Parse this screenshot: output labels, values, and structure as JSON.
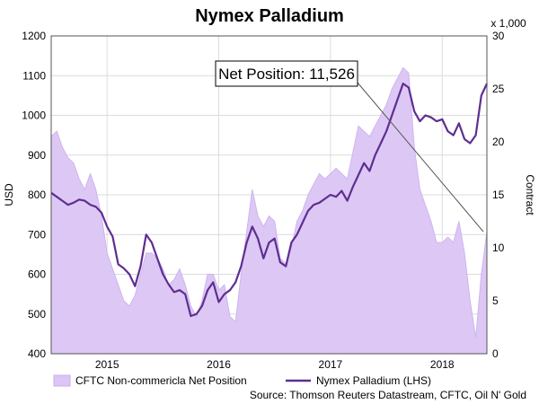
{
  "chart_data": {
    "type": "area+line",
    "title": "Nymex Palladium",
    "ylabel_left": "USD",
    "ylabel_right": "Contract",
    "right_axis_multiplier": "x 1,000",
    "ylim_left": [
      400,
      1200
    ],
    "yticks_left": [
      400,
      500,
      600,
      700,
      800,
      900,
      1000,
      1100,
      1200
    ],
    "ylim_right": [
      0,
      30
    ],
    "yticks_right": [
      0,
      5,
      10,
      15,
      20,
      25,
      30
    ],
    "x_range": [
      2014.5,
      2018.4
    ],
    "x_tick_labels": [
      {
        "x": 2015.0,
        "label": "2015"
      },
      {
        "x": 2016.0,
        "label": "2016"
      },
      {
        "x": 2017.0,
        "label": "2017"
      },
      {
        "x": 2018.0,
        "label": "2018"
      }
    ],
    "grid": true,
    "annotation": "Net Position: 11,526",
    "legend_position": "bottom",
    "source": "Source: Thomson Reuters Datastream, CFTC, Oil N' Gold",
    "series": [
      {
        "name": "CFTC Non-commericla Net Position",
        "axis": "right",
        "kind": "area",
        "color": "#dcc6f5",
        "points": [
          [
            2014.5,
            20.5
          ],
          [
            2014.55,
            21.0
          ],
          [
            2014.6,
            19.5
          ],
          [
            2014.65,
            18.5
          ],
          [
            2014.7,
            18.0
          ],
          [
            2014.75,
            16.5
          ],
          [
            2014.8,
            15.5
          ],
          [
            2014.85,
            17.0
          ],
          [
            2014.9,
            15.5
          ],
          [
            2014.95,
            13.0
          ],
          [
            2015.0,
            9.5
          ],
          [
            2015.05,
            8.0
          ],
          [
            2015.1,
            6.5
          ],
          [
            2015.15,
            5.0
          ],
          [
            2015.2,
            4.5
          ],
          [
            2015.25,
            5.5
          ],
          [
            2015.3,
            7.5
          ],
          [
            2015.35,
            9.5
          ],
          [
            2015.4,
            9.5
          ],
          [
            2015.45,
            9.0
          ],
          [
            2015.5,
            8.0
          ],
          [
            2015.55,
            6.5
          ],
          [
            2015.6,
            7.0
          ],
          [
            2015.65,
            8.0
          ],
          [
            2015.7,
            6.5
          ],
          [
            2015.75,
            4.5
          ],
          [
            2015.8,
            3.5
          ],
          [
            2015.85,
            5.0
          ],
          [
            2015.9,
            7.5
          ],
          [
            2015.95,
            7.5
          ],
          [
            2016.0,
            6.0
          ],
          [
            2016.05,
            6.5
          ],
          [
            2016.1,
            3.5
          ],
          [
            2016.15,
            3.0
          ],
          [
            2016.2,
            7.5
          ],
          [
            2016.25,
            11.5
          ],
          [
            2016.3,
            15.5
          ],
          [
            2016.35,
            13.0
          ],
          [
            2016.4,
            12.0
          ],
          [
            2016.45,
            13.0
          ],
          [
            2016.5,
            12.5
          ],
          [
            2016.55,
            9.0
          ],
          [
            2016.6,
            8.5
          ],
          [
            2016.65,
            10.0
          ],
          [
            2016.7,
            12.5
          ],
          [
            2016.75,
            13.5
          ],
          [
            2016.8,
            15.0
          ],
          [
            2016.85,
            16.0
          ],
          [
            2016.9,
            17.0
          ],
          [
            2016.95,
            16.5
          ],
          [
            2017.0,
            17.0
          ],
          [
            2017.05,
            17.5
          ],
          [
            2017.1,
            17.0
          ],
          [
            2017.15,
            16.5
          ],
          [
            2017.2,
            19.0
          ],
          [
            2017.25,
            21.5
          ],
          [
            2017.3,
            21.0
          ],
          [
            2017.35,
            20.5
          ],
          [
            2017.4,
            21.5
          ],
          [
            2017.45,
            22.5
          ],
          [
            2017.5,
            23.5
          ],
          [
            2017.55,
            25.0
          ],
          [
            2017.6,
            26.0
          ],
          [
            2017.65,
            27.0
          ],
          [
            2017.7,
            26.5
          ],
          [
            2017.75,
            19.5
          ],
          [
            2017.8,
            15.5
          ],
          [
            2017.85,
            14.0
          ],
          [
            2017.9,
            12.5
          ],
          [
            2017.95,
            10.5
          ],
          [
            2018.0,
            10.5
          ],
          [
            2018.05,
            11.0
          ],
          [
            2018.1,
            10.5
          ],
          [
            2018.15,
            12.5
          ],
          [
            2018.2,
            9.5
          ],
          [
            2018.25,
            5.0
          ],
          [
            2018.3,
            1.5
          ],
          [
            2018.35,
            7.5
          ],
          [
            2018.4,
            11.5
          ]
        ]
      },
      {
        "name": "Nymex Palladium (LHS)",
        "axis": "left",
        "kind": "line",
        "color": "#5e2e91",
        "points": [
          [
            2014.5,
            805
          ],
          [
            2014.55,
            795
          ],
          [
            2014.6,
            785
          ],
          [
            2014.65,
            775
          ],
          [
            2014.7,
            780
          ],
          [
            2014.75,
            788
          ],
          [
            2014.8,
            785
          ],
          [
            2014.85,
            775
          ],
          [
            2014.9,
            770
          ],
          [
            2014.95,
            755
          ],
          [
            2015.0,
            720
          ],
          [
            2015.05,
            695
          ],
          [
            2015.1,
            625
          ],
          [
            2015.15,
            615
          ],
          [
            2015.2,
            600
          ],
          [
            2015.25,
            570
          ],
          [
            2015.3,
            620
          ],
          [
            2015.35,
            700
          ],
          [
            2015.4,
            680
          ],
          [
            2015.45,
            640
          ],
          [
            2015.5,
            600
          ],
          [
            2015.55,
            575
          ],
          [
            2015.6,
            555
          ],
          [
            2015.65,
            560
          ],
          [
            2015.7,
            550
          ],
          [
            2015.75,
            495
          ],
          [
            2015.8,
            500
          ],
          [
            2015.85,
            520
          ],
          [
            2015.9,
            560
          ],
          [
            2015.95,
            580
          ],
          [
            2016.0,
            530
          ],
          [
            2016.05,
            550
          ],
          [
            2016.1,
            560
          ],
          [
            2016.15,
            580
          ],
          [
            2016.2,
            620
          ],
          [
            2016.25,
            680
          ],
          [
            2016.3,
            720
          ],
          [
            2016.35,
            690
          ],
          [
            2016.4,
            640
          ],
          [
            2016.45,
            680
          ],
          [
            2016.5,
            690
          ],
          [
            2016.55,
            630
          ],
          [
            2016.6,
            620
          ],
          [
            2016.65,
            680
          ],
          [
            2016.7,
            700
          ],
          [
            2016.75,
            730
          ],
          [
            2016.8,
            760
          ],
          [
            2016.85,
            775
          ],
          [
            2016.9,
            780
          ],
          [
            2016.95,
            790
          ],
          [
            2017.0,
            800
          ],
          [
            2017.05,
            795
          ],
          [
            2017.1,
            810
          ],
          [
            2017.15,
            785
          ],
          [
            2017.2,
            820
          ],
          [
            2017.25,
            850
          ],
          [
            2017.3,
            880
          ],
          [
            2017.35,
            860
          ],
          [
            2017.4,
            900
          ],
          [
            2017.45,
            930
          ],
          [
            2017.5,
            960
          ],
          [
            2017.55,
            1000
          ],
          [
            2017.6,
            1040
          ],
          [
            2017.65,
            1080
          ],
          [
            2017.7,
            1070
          ],
          [
            2017.75,
            1010
          ],
          [
            2017.8,
            985
          ],
          [
            2017.85,
            1000
          ],
          [
            2017.9,
            995
          ],
          [
            2017.95,
            985
          ],
          [
            2018.0,
            990
          ],
          [
            2018.05,
            960
          ],
          [
            2018.1,
            950
          ],
          [
            2018.15,
            980
          ],
          [
            2018.2,
            940
          ],
          [
            2018.25,
            930
          ],
          [
            2018.3,
            950
          ],
          [
            2018.35,
            1050
          ],
          [
            2018.4,
            1080
          ]
        ]
      }
    ]
  }
}
